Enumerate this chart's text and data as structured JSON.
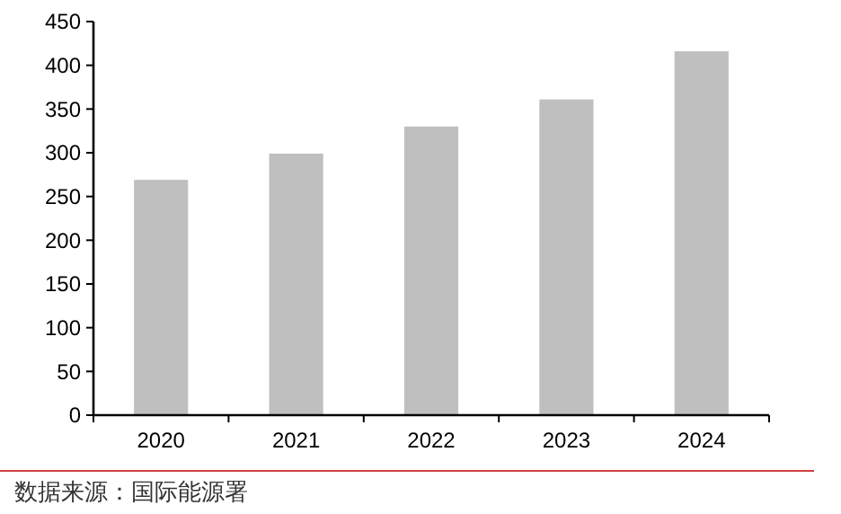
{
  "chart_data": {
    "type": "bar",
    "categories": [
      "2020",
      "2021",
      "2022",
      "2023",
      "2024"
    ],
    "values": [
      269,
      299,
      330,
      361,
      416
    ],
    "color": "#bfbfbf",
    "ylim": [
      0,
      450
    ],
    "yticks": [
      0,
      50,
      100,
      150,
      200,
      250,
      300,
      350,
      400,
      450
    ],
    "grid": false,
    "annotations": [
      "数据来源：国际能源署"
    ]
  }
}
